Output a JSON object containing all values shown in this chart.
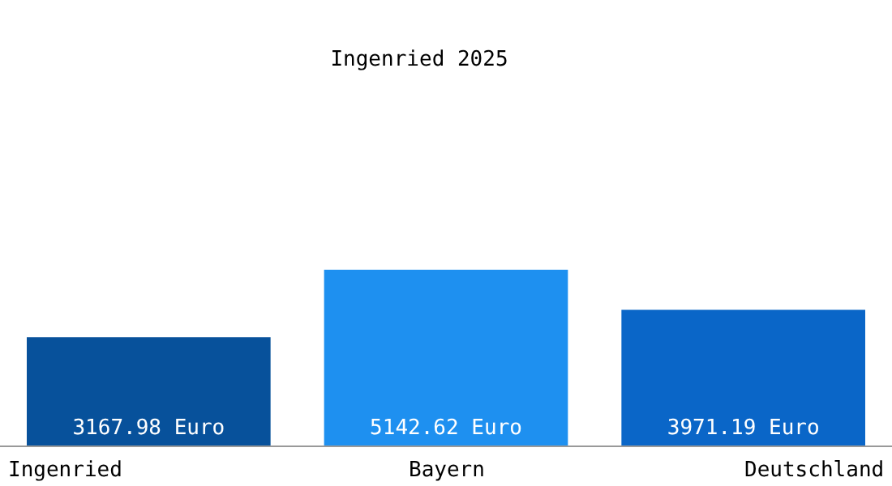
{
  "chart_data": {
    "type": "bar",
    "title": "Ingenried 2025",
    "categories": [
      "Ingenried",
      "Bayern",
      "Deutschland"
    ],
    "values": [
      3167.98,
      5142.62,
      3971.19
    ],
    "colors": [
      "#07519b",
      "#1e90f0",
      "#0a66c8"
    ],
    "value_labels": [
      "3167.98 Euro",
      "5142.62 Euro",
      "3971.19 Euro"
    ],
    "legend": false
  }
}
